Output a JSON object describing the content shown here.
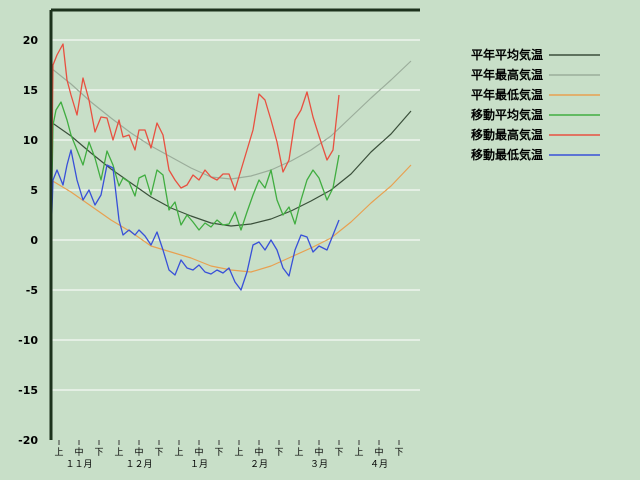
{
  "chart_data": {
    "type": "line",
    "title": "",
    "xlabel": "",
    "ylabel": "",
    "ylim": [
      -20,
      23
    ],
    "yticks": [
      20,
      15,
      10,
      5,
      0,
      -5,
      -10,
      -15,
      -20
    ],
    "xlim": [
      0,
      18
    ],
    "x_sub_ticks": [
      "上",
      "中",
      "下",
      "上",
      "中",
      "下",
      "上",
      "中",
      "下",
      "上",
      "中",
      "下",
      "上",
      "中",
      "下",
      "上",
      "中",
      "下"
    ],
    "x_month_ticks": [
      "１１月",
      "１２月",
      "１月",
      "２月",
      "３月",
      "４月"
    ],
    "grid": true,
    "legend_position": "top-right",
    "series": [
      {
        "name": "平年平均気温",
        "color": "#3a4f3a",
        "x": [
          0,
          1,
          2,
          3,
          4,
          5,
          6,
          7,
          8,
          9,
          10,
          11,
          12,
          13,
          14,
          15,
          16,
          17,
          18
        ],
        "y": [
          11.8,
          10.4,
          8.7,
          7.1,
          5.7,
          4.3,
          3.2,
          2.4,
          1.7,
          1.4,
          1.6,
          2.1,
          2.9,
          3.9,
          5.0,
          6.6,
          8.8,
          10.6,
          12.9
        ]
      },
      {
        "name": "平年最高気温",
        "color": "#9bad9b",
        "x": [
          0,
          1,
          2,
          3,
          4,
          5,
          6,
          7,
          8,
          9,
          10,
          11,
          12,
          13,
          14,
          15,
          16,
          17,
          18
        ],
        "y": [
          17.2,
          15.6,
          13.8,
          12.2,
          10.7,
          9.4,
          8.3,
          7.2,
          6.3,
          6.1,
          6.4,
          7.0,
          7.9,
          9.0,
          10.4,
          12.3,
          14.2,
          16.0,
          17.9
        ]
      },
      {
        "name": "平年最低気温",
        "color": "#e8a050",
        "x": [
          0,
          1,
          2,
          3,
          4,
          5,
          6,
          7,
          8,
          9,
          10,
          11,
          12,
          13,
          14,
          15,
          16,
          17,
          18
        ],
        "y": [
          6.0,
          4.8,
          3.4,
          2.0,
          0.8,
          -0.6,
          -1.2,
          -1.8,
          -2.6,
          -3.0,
          -3.2,
          -2.6,
          -1.7,
          -0.8,
          0.2,
          1.8,
          3.7,
          5.4,
          7.5
        ]
      },
      {
        "name": "移動平均気温",
        "color": "#40ad40",
        "x": [
          0,
          0.1,
          0.25,
          0.5,
          0.8,
          1.0,
          1.3,
          1.6,
          1.9,
          2.2,
          2.5,
          2.8,
          3.1,
          3.4,
          3.6,
          3.9,
          4.2,
          4.4,
          4.7,
          5.0,
          5.3,
          5.6,
          5.9,
          6.2,
          6.5,
          6.8,
          7.1,
          7.4,
          7.7,
          8.0,
          8.3,
          8.6,
          8.9,
          9.2,
          9.5,
          9.8,
          10.1,
          10.4,
          10.7,
          11.0,
          11.3,
          11.6,
          11.9,
          12.2,
          12.5,
          12.8,
          13.1,
          13.4,
          13.8,
          14.1,
          14.4
        ],
        "y": [
          0,
          11.5,
          13.0,
          13.8,
          12.0,
          10.5,
          9.0,
          7.5,
          9.8,
          8.2,
          6.0,
          8.9,
          7.5,
          5.4,
          6.2,
          5.8,
          4.4,
          6.2,
          6.5,
          4.5,
          7.0,
          6.5,
          3.0,
          3.8,
          1.5,
          2.5,
          1.8,
          1.0,
          1.7,
          1.3,
          2.0,
          1.5,
          1.6,
          2.8,
          1.0,
          2.8,
          4.5,
          6.0,
          5.2,
          7.0,
          4.0,
          2.5,
          3.3,
          1.6,
          4.0,
          6.0,
          7.0,
          6.2,
          4.0,
          5.2,
          8.5
        ]
      },
      {
        "name": "移動最高気温",
        "color": "#e85040",
        "x": [
          0,
          0.1,
          0.3,
          0.6,
          0.8,
          1.0,
          1.3,
          1.6,
          1.9,
          2.2,
          2.5,
          2.8,
          3.1,
          3.4,
          3.6,
          3.9,
          4.2,
          4.4,
          4.7,
          5.0,
          5.3,
          5.6,
          5.9,
          6.2,
          6.5,
          6.8,
          7.1,
          7.4,
          7.7,
          8.0,
          8.3,
          8.6,
          8.9,
          9.2,
          9.5,
          9.8,
          10.1,
          10.4,
          10.7,
          11.0,
          11.3,
          11.6,
          11.9,
          12.2,
          12.5,
          12.8,
          13.1,
          13.4,
          13.8,
          14.1,
          14.4
        ],
        "y": [
          0,
          17.5,
          18.5,
          19.6,
          16.0,
          14.5,
          12.5,
          16.2,
          14.0,
          10.8,
          12.3,
          12.2,
          10.0,
          12.0,
          10.3,
          10.5,
          9.0,
          11.0,
          11.0,
          9.2,
          11.7,
          10.5,
          7.0,
          6.0,
          5.2,
          5.5,
          6.5,
          6.0,
          7.0,
          6.3,
          6.0,
          6.6,
          6.6,
          5.0,
          7.0,
          9.0,
          11.0,
          14.6,
          14.0,
          12.0,
          9.8,
          6.8,
          8.0,
          12.0,
          13.0,
          14.8,
          12.3,
          10.4,
          8.0,
          9.0,
          14.5
        ]
      },
      {
        "name": "移動最低気温",
        "color": "#3850d8",
        "x": [
          0,
          0.1,
          0.3,
          0.6,
          0.8,
          1.0,
          1.3,
          1.6,
          1.9,
          2.2,
          2.5,
          2.8,
          3.1,
          3.4,
          3.6,
          3.9,
          4.2,
          4.4,
          4.7,
          5.0,
          5.3,
          5.6,
          5.9,
          6.2,
          6.5,
          6.8,
          7.1,
          7.4,
          7.7,
          8.0,
          8.3,
          8.6,
          8.9,
          9.2,
          9.5,
          9.8,
          10.1,
          10.4,
          10.7,
          11.0,
          11.3,
          11.6,
          11.9,
          12.2,
          12.5,
          12.8,
          13.1,
          13.4,
          13.8,
          14.1,
          14.4
        ],
        "y": [
          0,
          6.0,
          7.0,
          5.5,
          7.5,
          9.0,
          6.0,
          4.0,
          5.0,
          3.5,
          4.5,
          7.5,
          7.2,
          2.0,
          0.5,
          1.0,
          0.5,
          1.0,
          0.4,
          -0.5,
          0.8,
          -1.0,
          -3.0,
          -3.5,
          -2.0,
          -2.8,
          -3.0,
          -2.5,
          -3.2,
          -3.4,
          -3.0,
          -3.3,
          -2.8,
          -4.2,
          -5.0,
          -3.2,
          -0.5,
          -0.2,
          -1.0,
          0.0,
          -1.0,
          -2.8,
          -3.6,
          -1.0,
          0.5,
          0.3,
          -1.2,
          -0.6,
          -1.0,
          0.5,
          2.0
        ]
      }
    ]
  }
}
